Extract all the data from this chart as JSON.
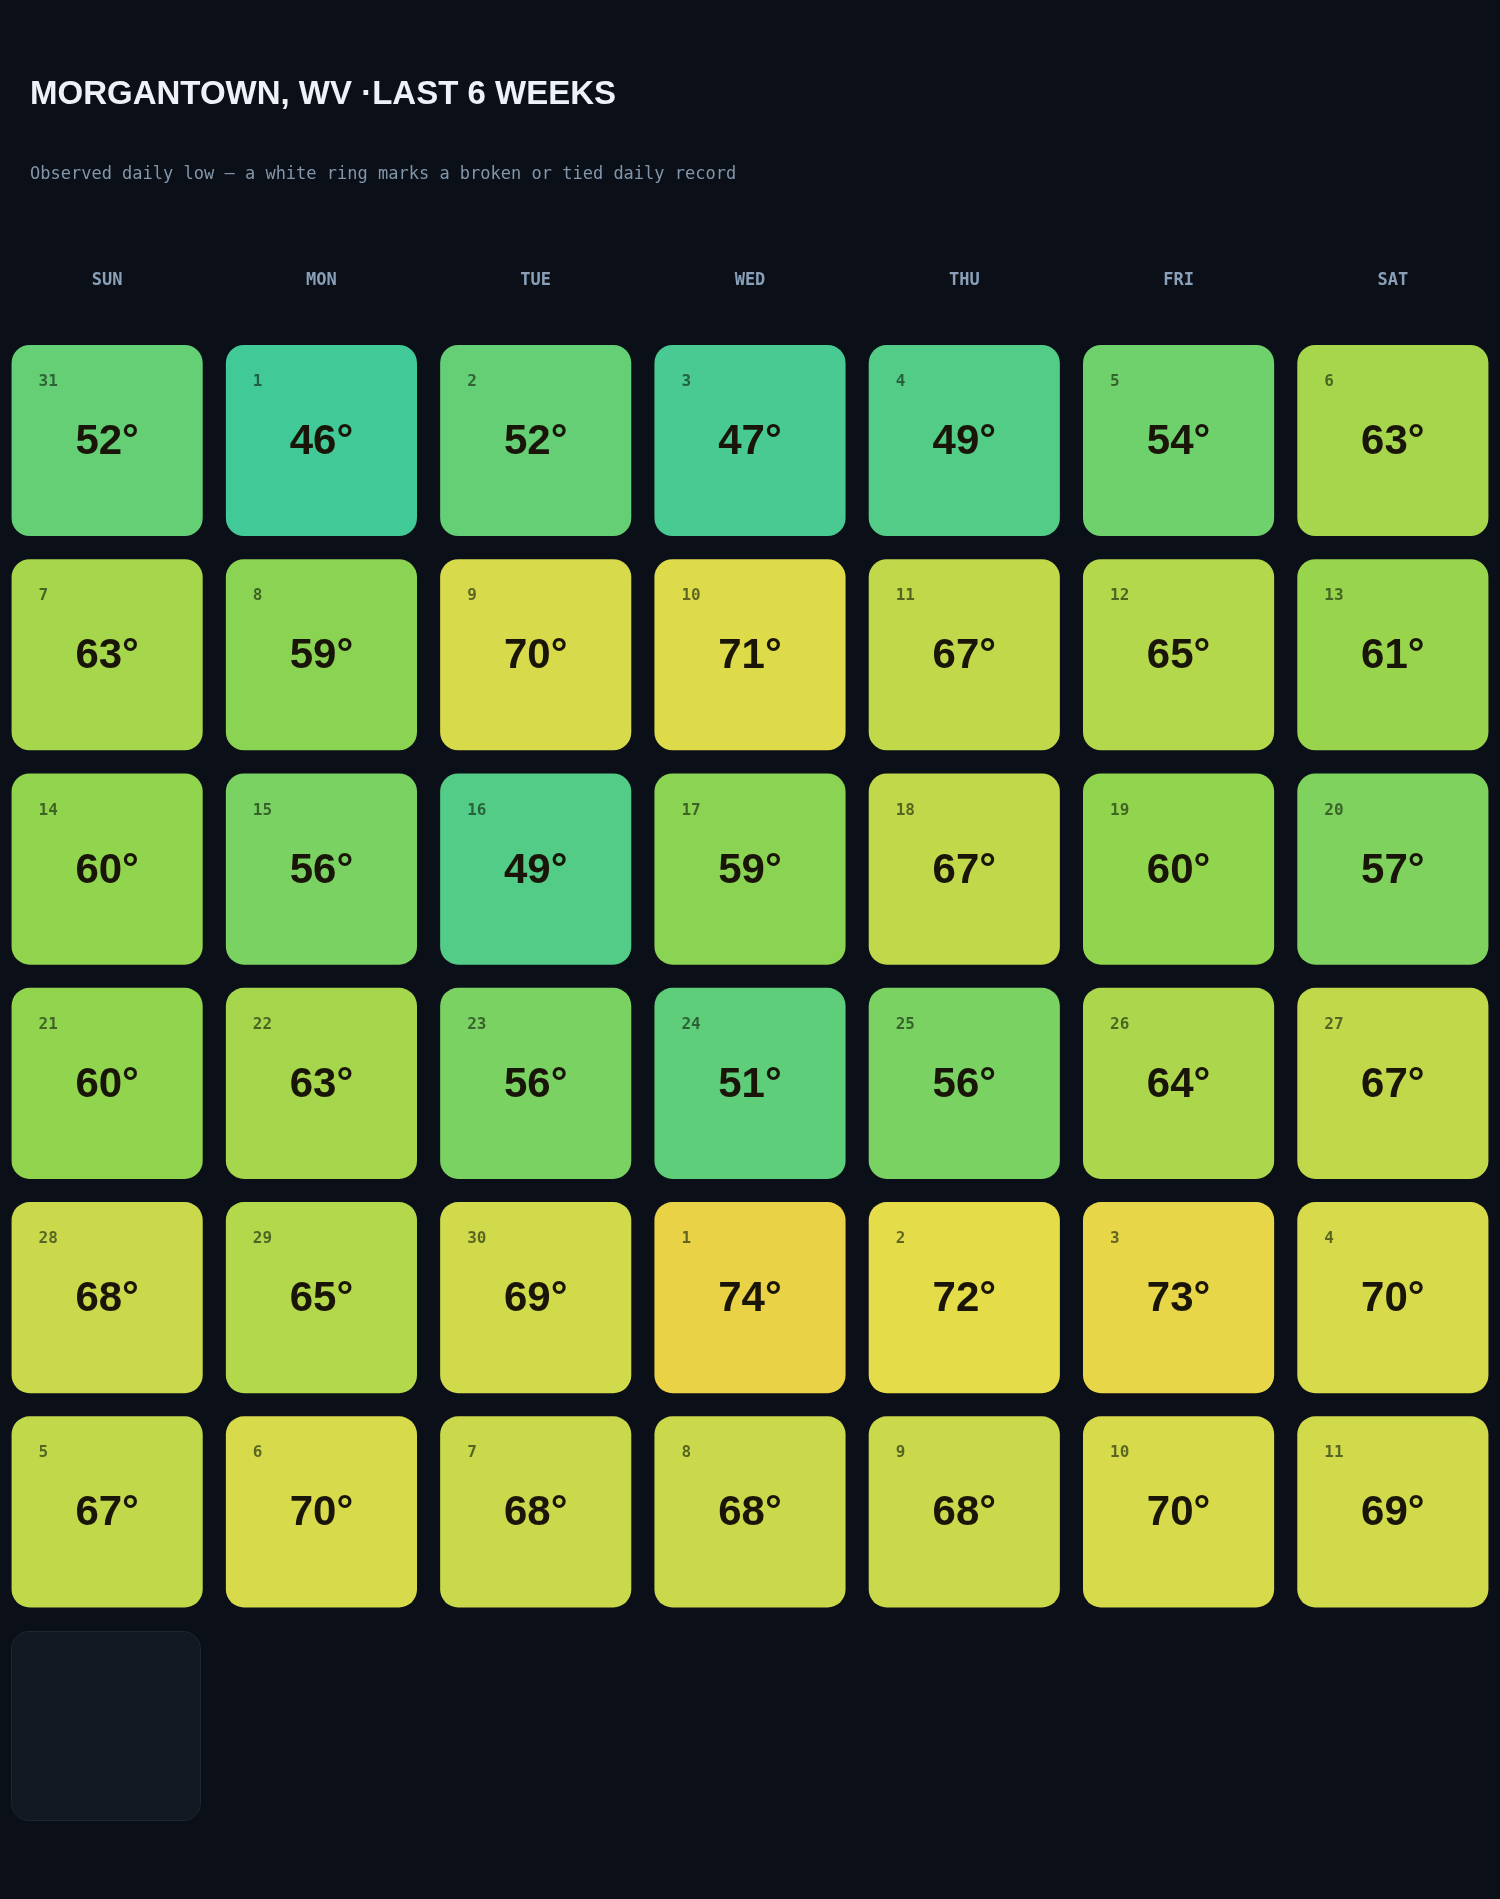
{
  "chart_data": {
    "type": "heatmap",
    "title": "MORGANTOWN, WV ·LAST 6 WEEKS",
    "subtitle": "Observed daily low — a white ring marks a broken or tied daily record",
    "categories": [
      "SUN",
      "MON",
      "TUE",
      "WED",
      "THU",
      "FRI",
      "SAT"
    ],
    "y_categories": [
      null,
      null,
      null,
      null,
      null,
      null
    ],
    "cells": [
      [
        52,
        46,
        52,
        47,
        49,
        54,
        63
      ],
      [
        63,
        59,
        70,
        71,
        67,
        65,
        61
      ],
      [
        60,
        56,
        49,
        59,
        67,
        60,
        57
      ],
      [
        60,
        63,
        56,
        51,
        56,
        64,
        67
      ],
      [
        68,
        65,
        69,
        74,
        72,
        73,
        70
      ],
      [
        67,
        70,
        68,
        68,
        68,
        70,
        69
      ]
    ],
    "cell_labels": [
      [
        "52°",
        "46°",
        "52°",
        "47°",
        "49°",
        "54°",
        "63°"
      ],
      [
        "63°",
        "59°",
        "70°",
        "71°",
        "67°",
        "65°",
        "61°"
      ],
      [
        "60°",
        "56°",
        "49°",
        "59°",
        "67°",
        "60°",
        "57°"
      ],
      [
        "60°",
        "63°",
        "56°",
        "51°",
        "56°",
        "64°",
        "67°"
      ],
      [
        "68°",
        "65°",
        "69°",
        "74°",
        "72°",
        "73°",
        "70°"
      ],
      [
        "67°",
        "70°",
        "68°",
        "68°",
        "68°",
        "70°",
        "69°"
      ]
    ],
    "annotations": [
      "31",
      "1",
      "2",
      "3",
      "4",
      "5",
      "6",
      "7",
      "8",
      "9",
      "10",
      "11",
      "12",
      "13",
      "14",
      "15",
      "16",
      "17",
      "18",
      "19",
      "20",
      "21",
      "22",
      "23",
      "24",
      "25",
      "26",
      "27",
      "28",
      "29",
      "30",
      "1",
      "2",
      "3",
      "4",
      "5",
      "6",
      "7",
      "8",
      "9",
      "10",
      "11"
    ]
  }
}
